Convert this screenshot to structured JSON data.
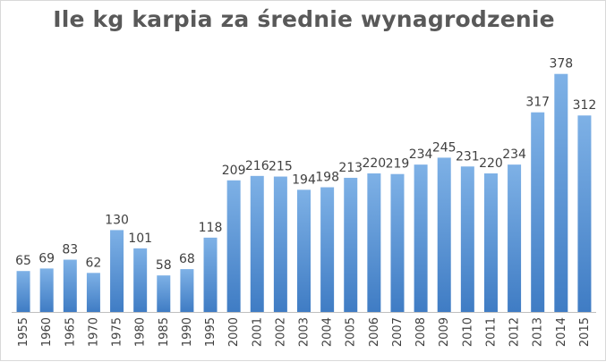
{
  "chart_data": {
    "type": "bar",
    "title": "Ile kg karpia za średnie wynagrodzenie",
    "xlabel": "",
    "ylabel": "",
    "categories": [
      "1955",
      "1960",
      "1965",
      "1970",
      "1975",
      "1980",
      "1985",
      "1990",
      "1995",
      "2000",
      "2001",
      "2002",
      "2003",
      "2004",
      "2005",
      "2006",
      "2007",
      "2008",
      "2009",
      "2010",
      "2011",
      "2012",
      "2013",
      "2014",
      "2015"
    ],
    "values": [
      65,
      69,
      83,
      62,
      130,
      101,
      58,
      68,
      118,
      209,
      216,
      215,
      194,
      198,
      213,
      220,
      219,
      234,
      245,
      231,
      220,
      234,
      317,
      378,
      312
    ],
    "ylim": [
      0,
      400
    ],
    "grid": false,
    "legend": "none",
    "data_labels": true,
    "bar_color_top": "#7eb1e6",
    "bar_color_bottom": "#3f7cc4",
    "axis_color": "#bfbfbf",
    "text_color": "#404040",
    "title_color": "#595959"
  }
}
